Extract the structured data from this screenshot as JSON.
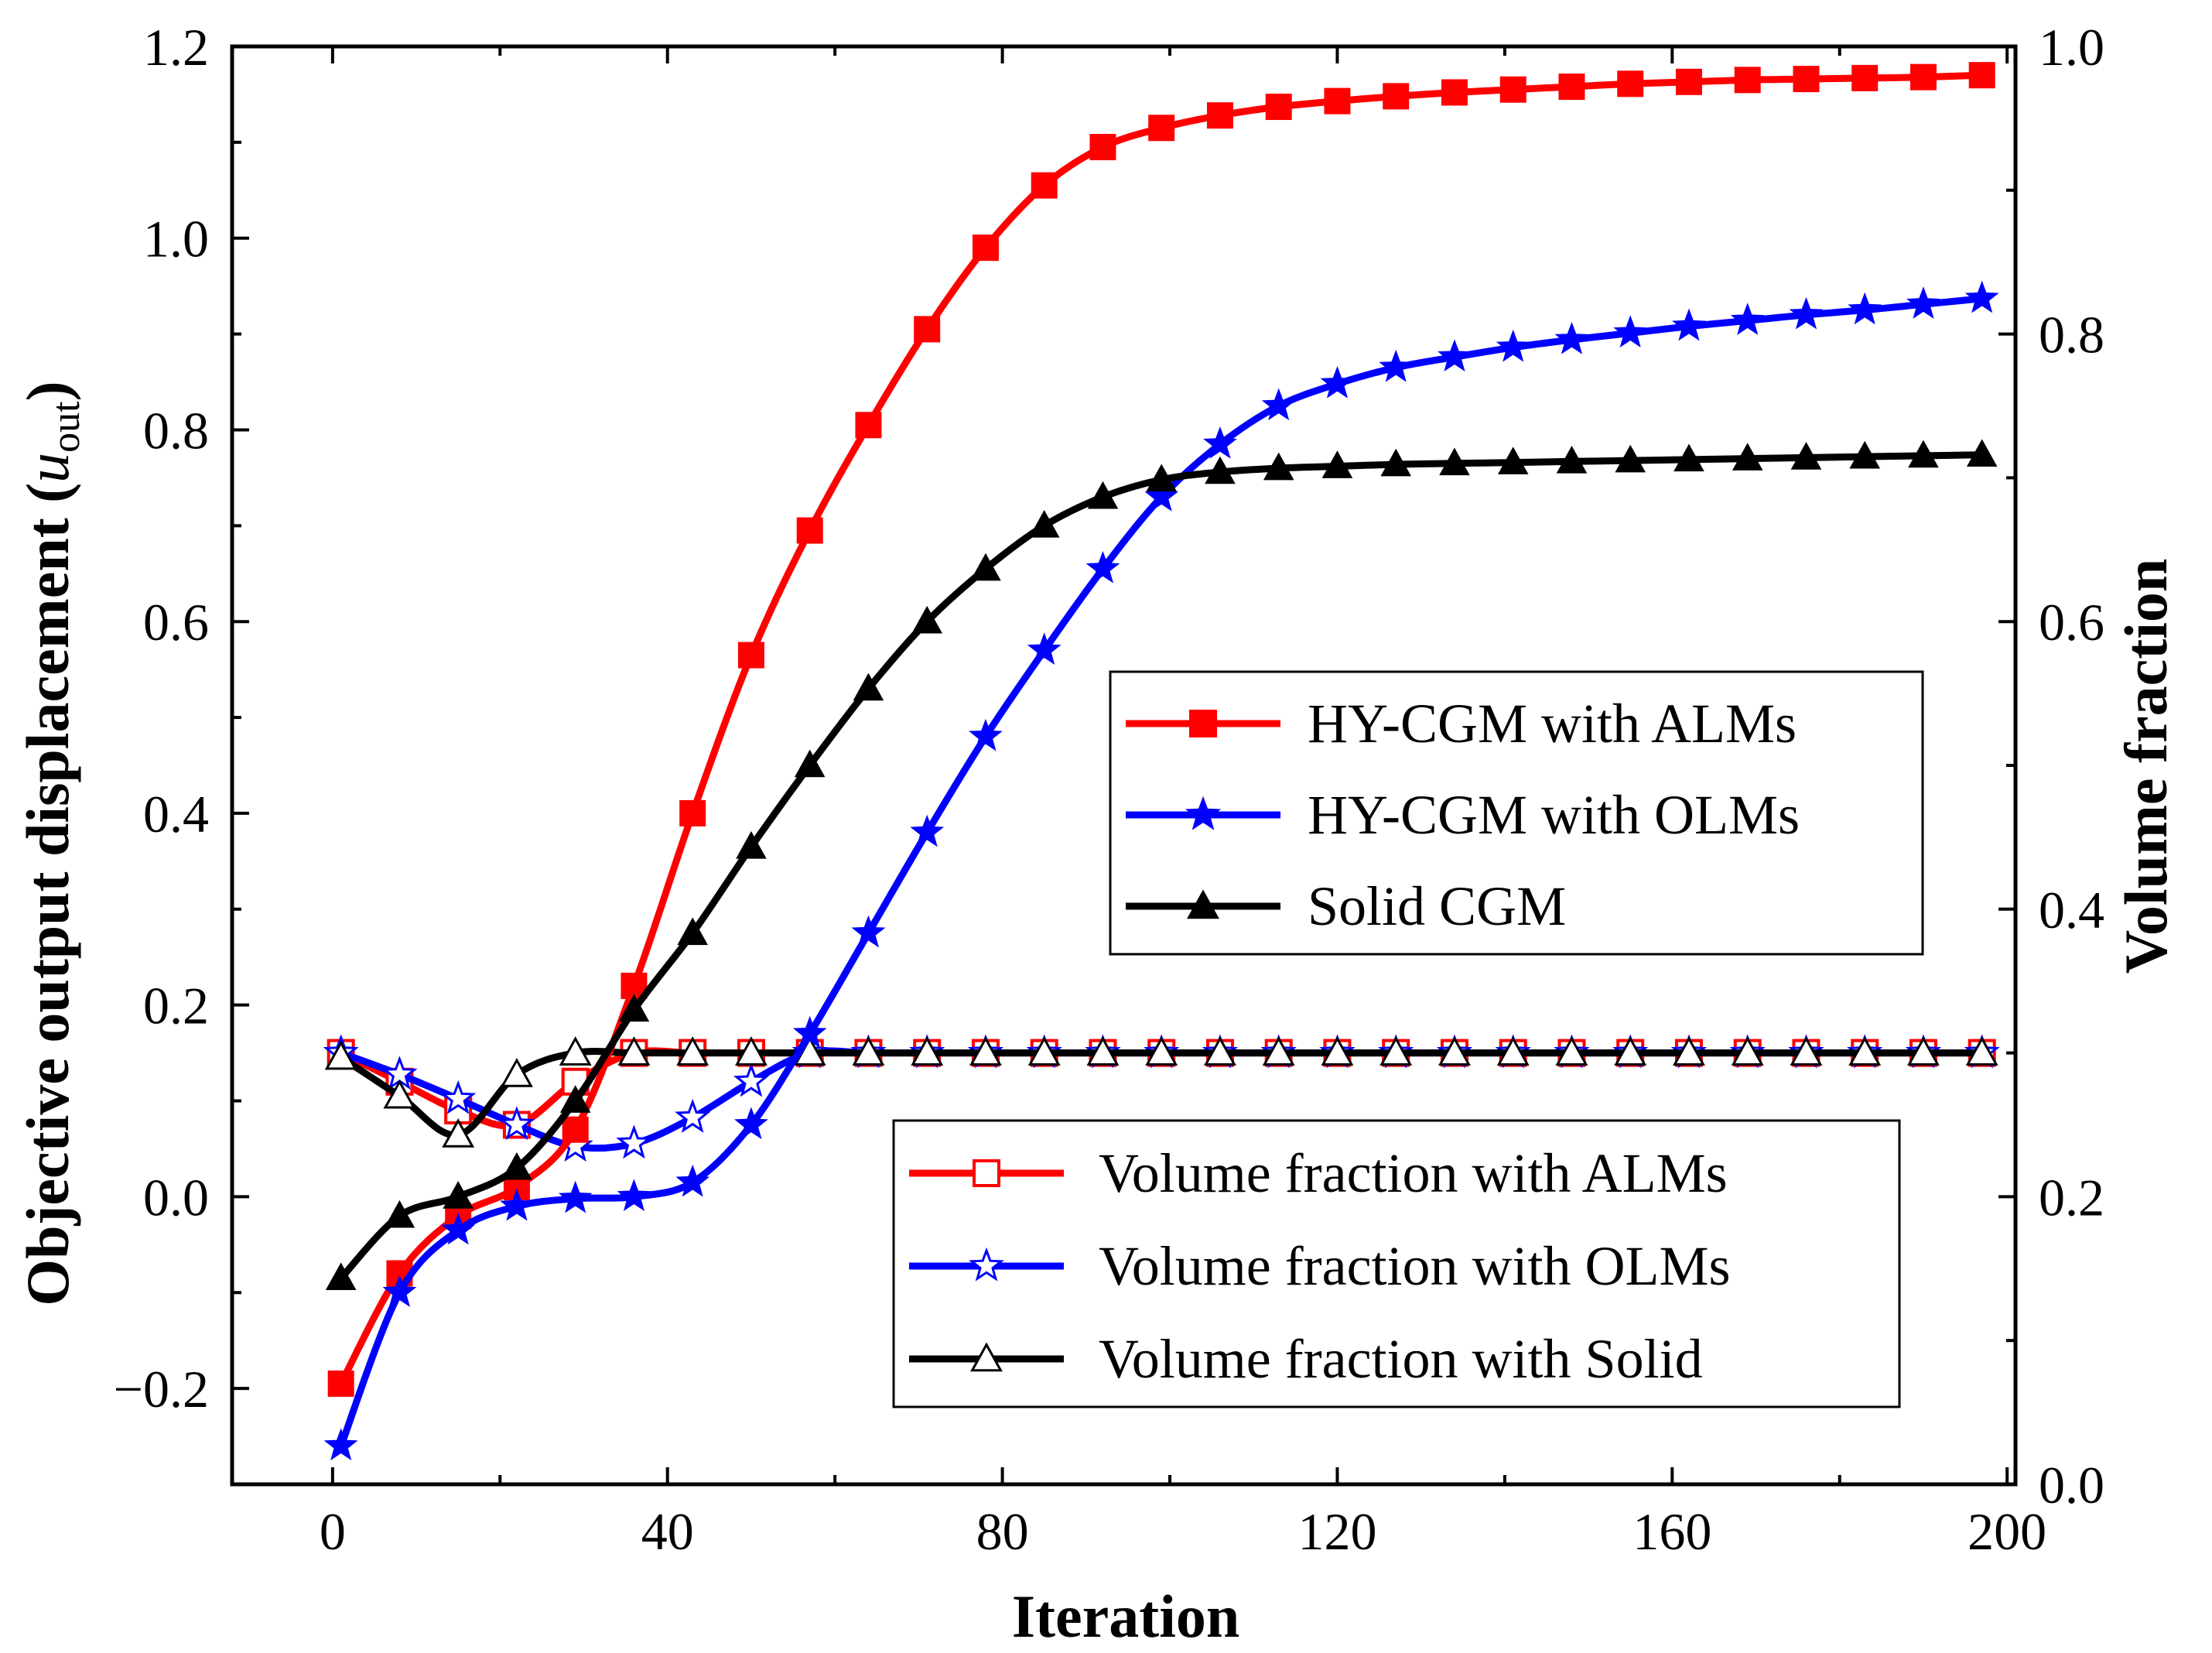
{
  "chart_data": {
    "type": "line",
    "xlabel": "Iteration",
    "ylabel_left_main": "Objective output displacement (",
    "ylabel_left_var": "u",
    "ylabel_left_sub": "out",
    "ylabel_left_close": ")",
    "ylabel_right": "Volume fraction",
    "xlim": [
      -12,
      201
    ],
    "ylim_left": [
      -0.3,
      1.2
    ],
    "ylim_right": [
      0.0,
      1.0
    ],
    "x_ticks": [
      0,
      40,
      80,
      120,
      160,
      200
    ],
    "x_tick_labels": [
      "0",
      "40",
      "80",
      "120",
      "160",
      "200"
    ],
    "y_left_ticks": [
      -0.2,
      0.0,
      0.2,
      0.4,
      0.6,
      0.8,
      1.0,
      1.2
    ],
    "y_left_tick_labels": [
      "−0.2",
      "0.0",
      "0.2",
      "0.4",
      "0.6",
      "0.8",
      "1.0",
      "1.2"
    ],
    "y_right_ticks": [
      0.0,
      0.2,
      0.4,
      0.6,
      0.8,
      1.0
    ],
    "y_right_tick_labels": [
      "0.0",
      "0.2",
      "0.4",
      "0.6",
      "0.8",
      "1.0"
    ],
    "x": [
      1,
      8,
      15,
      22,
      29,
      36,
      43,
      50,
      57,
      64,
      71,
      78,
      85,
      92,
      99,
      106,
      113,
      120,
      127,
      134,
      141,
      148,
      155,
      162,
      169,
      176,
      183,
      190,
      197
    ],
    "series": [
      {
        "name": "HY-CGM with ALMs",
        "axis": "left",
        "color": "#ff0000",
        "marker": "square",
        "filled": true,
        "values": [
          -0.195,
          -0.08,
          -0.02,
          0.01,
          0.07,
          0.22,
          0.4,
          0.565,
          0.695,
          0.805,
          0.905,
          0.99,
          1.055,
          1.095,
          1.115,
          1.128,
          1.137,
          1.143,
          1.148,
          1.152,
          1.155,
          1.158,
          1.161,
          1.163,
          1.165,
          1.166,
          1.167,
          1.168,
          1.17
        ]
      },
      {
        "name": "HY-CGM with OLMs",
        "axis": "left",
        "color": "#0000ff",
        "marker": "star",
        "filled": true,
        "values": [
          -0.26,
          -0.1,
          -0.035,
          -0.01,
          -0.002,
          0.0,
          0.015,
          0.075,
          0.17,
          0.275,
          0.38,
          0.48,
          0.57,
          0.655,
          0.73,
          0.785,
          0.825,
          0.848,
          0.865,
          0.876,
          0.886,
          0.894,
          0.901,
          0.908,
          0.914,
          0.92,
          0.925,
          0.931,
          0.937
        ]
      },
      {
        "name": "Solid CGM",
        "axis": "left",
        "color": "#000000",
        "marker": "triangle",
        "filled": true,
        "values": [
          -0.085,
          -0.02,
          0.0,
          0.03,
          0.1,
          0.195,
          0.275,
          0.365,
          0.45,
          0.53,
          0.6,
          0.655,
          0.7,
          0.73,
          0.748,
          0.756,
          0.76,
          0.762,
          0.764,
          0.765,
          0.766,
          0.767,
          0.768,
          0.769,
          0.77,
          0.771,
          0.772,
          0.773,
          0.774
        ]
      },
      {
        "name": "Volume fraction with ALMs",
        "axis": "right",
        "color": "#ff0000",
        "marker": "square",
        "filled": false,
        "values": [
          0.3,
          0.28,
          0.26,
          0.25,
          0.28,
          0.3,
          0.3,
          0.3,
          0.3,
          0.3,
          0.3,
          0.3,
          0.3,
          0.3,
          0.3,
          0.3,
          0.3,
          0.3,
          0.3,
          0.3,
          0.3,
          0.3,
          0.3,
          0.3,
          0.3,
          0.3,
          0.3,
          0.3,
          0.3
        ]
      },
      {
        "name": "Volume fraction with  OLMs",
        "axis": "right",
        "color": "#0000ff",
        "marker": "star",
        "filled": false,
        "values": [
          0.3,
          0.285,
          0.268,
          0.25,
          0.235,
          0.237,
          0.255,
          0.28,
          0.3,
          0.3,
          0.3,
          0.3,
          0.3,
          0.3,
          0.3,
          0.3,
          0.3,
          0.3,
          0.3,
          0.3,
          0.3,
          0.3,
          0.3,
          0.3,
          0.3,
          0.3,
          0.3,
          0.3,
          0.3
        ]
      },
      {
        "name": "Volume fraction with  Solid",
        "axis": "right",
        "color": "#000000",
        "marker": "triangle",
        "filled": false,
        "values": [
          0.297,
          0.27,
          0.243,
          0.285,
          0.3,
          0.3,
          0.3,
          0.3,
          0.3,
          0.3,
          0.3,
          0.3,
          0.3,
          0.3,
          0.3,
          0.3,
          0.3,
          0.3,
          0.3,
          0.3,
          0.3,
          0.3,
          0.3,
          0.3,
          0.3,
          0.3,
          0.3,
          0.3,
          0.3
        ]
      }
    ],
    "legends": [
      {
        "placement": "center-right",
        "entries": [
          "HY-CGM with ALMs",
          "HY-CGM with OLMs",
          "Solid CGM"
        ]
      },
      {
        "placement": "lower-right",
        "entries": [
          "Volume fraction with ALMs",
          "Volume fraction with  OLMs",
          "Volume fraction with  Solid"
        ]
      }
    ]
  }
}
